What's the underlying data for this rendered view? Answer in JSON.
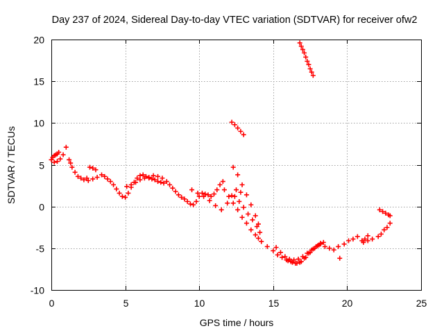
{
  "chart_data": {
    "type": "scatter",
    "title": "Day 237 of 2024, Sidereal Day-to-day VTEC variation (SDTVAR) for receiver ofw2",
    "xlabel": "GPS time / hours",
    "ylabel": "SDTVAR / TECUs",
    "xlim": [
      0,
      25
    ],
    "ylim": [
      -10,
      20
    ],
    "xticks": [
      0,
      5,
      10,
      15,
      20,
      25
    ],
    "yticks": [
      -10,
      -5,
      0,
      5,
      10,
      15,
      20
    ],
    "xtick_labels": [
      "0",
      "5",
      "10",
      "15",
      "20",
      "25"
    ],
    "ytick_labels": [
      "-10",
      "-5",
      "0",
      "5",
      "10",
      "15",
      "20"
    ],
    "grid": true,
    "marker": "plus",
    "series_color": "#ff0000",
    "series": [
      {
        "name": "SDTVAR",
        "x": [
          0.0,
          0.1,
          0.2,
          0.3,
          0.4,
          0.5,
          0.2,
          0.4,
          0.6,
          0.8,
          1.0,
          1.2,
          1.3,
          1.4,
          1.6,
          1.8,
          2.0,
          2.2,
          2.4,
          2.6,
          2.8,
          3.0,
          2.5,
          2.8,
          3.1,
          3.4,
          3.6,
          3.8,
          4.0,
          4.2,
          4.4,
          4.6,
          4.8,
          5.0,
          5.2,
          5.4,
          5.6,
          5.8,
          6.0,
          6.2,
          6.4,
          6.6,
          6.8,
          7.0,
          7.2,
          7.4,
          7.6,
          5.1,
          5.4,
          5.7,
          6.0,
          6.3,
          6.6,
          6.9,
          7.2,
          7.5,
          7.8,
          8.0,
          8.2,
          8.4,
          8.6,
          8.8,
          9.0,
          9.2,
          9.4,
          9.6,
          9.8,
          10.0,
          10.2,
          10.4,
          10.6,
          10.8,
          11.0,
          11.2,
          11.4,
          11.6,
          9.5,
          9.9,
          10.3,
          10.7,
          11.1,
          11.5,
          11.9,
          12.2,
          12.5,
          12.8,
          12.3,
          12.6,
          12.9,
          13.2,
          13.5,
          13.8,
          14.0,
          11.7,
          12.0,
          12.3,
          12.6,
          12.9,
          13.2,
          13.5,
          13.8,
          14.0,
          12.4,
          12.7,
          13.0,
          13.3,
          13.6,
          13.9,
          14.1,
          12.2,
          12.4,
          12.6,
          12.8,
          13.0,
          16.8,
          16.9,
          17.0,
          17.1,
          17.2,
          17.3,
          17.4,
          17.5,
          17.6,
          17.7,
          14.2,
          14.6,
          15.0,
          15.3,
          15.6,
          15.9,
          16.2,
          16.5,
          16.8,
          17.1,
          17.4,
          17.7,
          18.0,
          15.2,
          15.5,
          15.8,
          16.1,
          16.4,
          16.7,
          17.0,
          17.3,
          17.6,
          17.9,
          18.2,
          16.0,
          16.3,
          16.6,
          16.9,
          17.2,
          17.5,
          17.8,
          18.1,
          18.4,
          18.2,
          18.5,
          18.8,
          19.1,
          19.4,
          19.5,
          19.8,
          20.1,
          20.4,
          20.7,
          21.0,
          21.2,
          21.4,
          21.1,
          21.4,
          21.7,
          22.1,
          22.3,
          22.5,
          22.7,
          22.9,
          22.2,
          22.4,
          22.6,
          22.8,
          22.9
        ],
        "y": [
          5.6,
          5.9,
          6.1,
          6.2,
          6.3,
          6.5,
          5.3,
          5.4,
          5.7,
          6.2,
          7.1,
          5.6,
          5.2,
          4.7,
          4.1,
          3.6,
          3.4,
          3.2,
          3.4,
          4.7,
          4.6,
          4.4,
          3.1,
          3.3,
          3.5,
          3.8,
          3.6,
          3.3,
          3.0,
          2.6,
          2.1,
          1.6,
          1.2,
          1.1,
          1.6,
          2.3,
          2.9,
          3.4,
          3.7,
          3.8,
          3.6,
          3.4,
          3.3,
          3.2,
          3.0,
          2.9,
          2.8,
          2.4,
          2.6,
          2.9,
          3.2,
          3.4,
          3.5,
          3.7,
          3.6,
          3.4,
          3.0,
          2.6,
          2.2,
          1.8,
          1.4,
          1.1,
          0.9,
          0.6,
          0.3,
          0.2,
          0.6,
          1.2,
          1.6,
          1.5,
          1.4,
          1.2,
          1.5,
          2.0,
          2.6,
          3.0,
          2.0,
          1.6,
          1.2,
          0.7,
          0.1,
          -0.4,
          0.4,
          1.3,
          2.0,
          1.7,
          4.7,
          3.8,
          2.6,
          1.4,
          0.2,
          -1.1,
          -2.1,
          2.0,
          1.2,
          0.4,
          -0.4,
          -1.3,
          -2.0,
          -2.8,
          -3.4,
          -3.8,
          1.2,
          0.6,
          -0.1,
          -0.9,
          -1.6,
          -2.4,
          -3.1,
          10.1,
          9.8,
          9.4,
          9.0,
          8.6,
          19.6,
          19.2,
          18.8,
          18.4,
          17.9,
          17.4,
          17.0,
          16.5,
          16.1,
          15.7,
          -4.2,
          -4.8,
          -5.3,
          -5.8,
          -6.1,
          -6.4,
          -6.6,
          -6.8,
          -6.7,
          -6.2,
          -5.6,
          -5.1,
          -4.7,
          -4.9,
          -5.5,
          -6.0,
          -6.3,
          -6.4,
          -6.3,
          -6.0,
          -5.6,
          -5.2,
          -4.8,
          -4.4,
          -6.5,
          -6.7,
          -6.8,
          -6.6,
          -6.1,
          -5.5,
          -5.0,
          -4.6,
          -4.3,
          -4.5,
          -4.8,
          -5.0,
          -5.2,
          -4.8,
          -6.2,
          -4.5,
          -4.1,
          -3.9,
          -3.6,
          -4.1,
          -3.9,
          -3.5,
          -4.3,
          -4.1,
          -3.9,
          -3.6,
          -3.3,
          -2.8,
          -2.5,
          -2.0,
          -0.4,
          -0.6,
          -0.8,
          -1.0,
          -1.1
        ]
      }
    ]
  }
}
